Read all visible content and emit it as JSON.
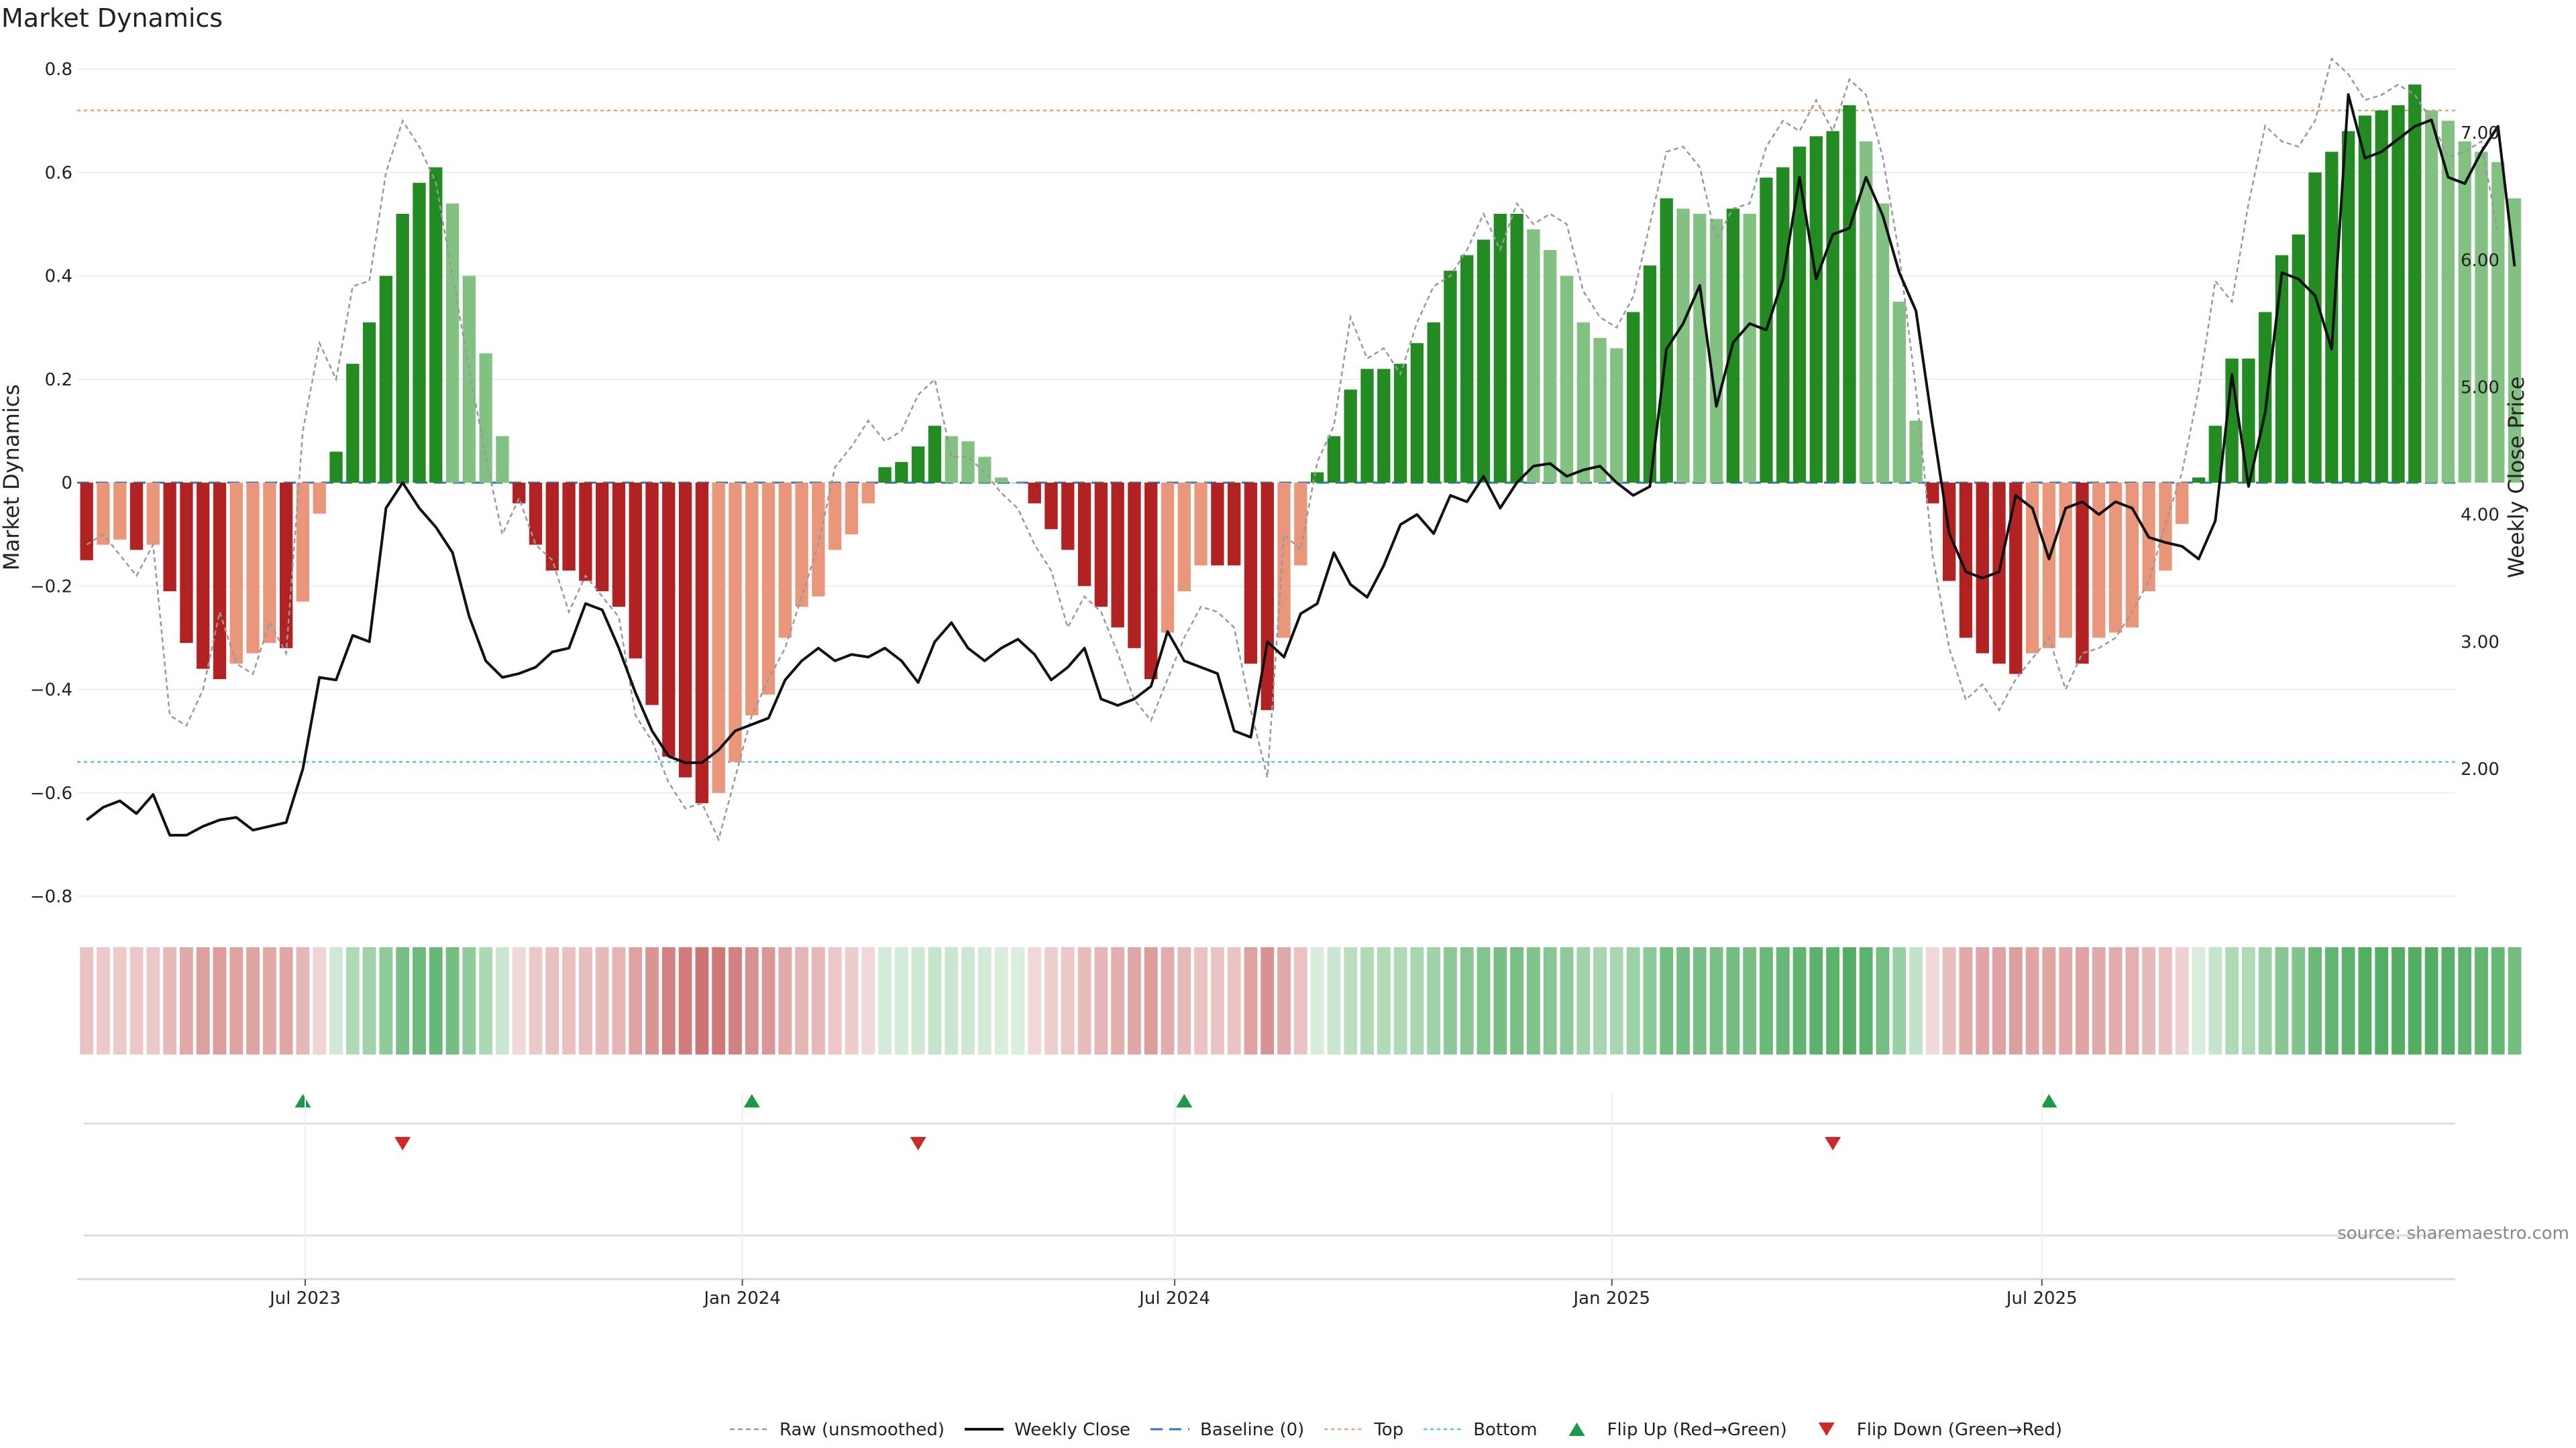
{
  "chart_data": {
    "type": "bar",
    "title": "Market Dynamics",
    "ylabel": "Market Dynamics",
    "y2label": "Weekly Close Price",
    "ylim": [
      -0.8,
      0.8
    ],
    "y2lim": [
      1.0,
      7.5
    ],
    "yticks": [
      "0.8",
      "0.6",
      "0.4",
      "0.2",
      "0",
      "−0.2",
      "−0.4",
      "−0.6",
      "−0.8"
    ],
    "y2ticks": [
      "7.00",
      "6.00",
      "5.00",
      "4.00",
      "3.00",
      "2.00"
    ],
    "xlim": [
      "2023-03-27",
      "2025-12-22"
    ],
    "x_ticks": [
      {
        "date": "2023-07-01",
        "label": "Jul 2023"
      },
      {
        "date": "2024-01-01",
        "label": "Jan 2024"
      },
      {
        "date": "2024-07-01",
        "label": "Jul 2024"
      },
      {
        "date": "2025-01-01",
        "label": "Jan 2025"
      },
      {
        "date": "2025-07-01",
        "label": "Jul 2025"
      }
    ],
    "start_date": "2023-03-31",
    "week_step_days": 7,
    "top_line": 0.72,
    "bottom_line": -0.54,
    "values": [
      -0.15,
      -0.12,
      -0.11,
      -0.13,
      -0.12,
      -0.21,
      -0.31,
      -0.36,
      -0.38,
      -0.35,
      -0.33,
      -0.31,
      -0.32,
      -0.23,
      -0.06,
      0.06,
      0.23,
      0.31,
      0.4,
      0.52,
      0.58,
      0.61,
      0.54,
      0.4,
      0.25,
      0.09,
      -0.04,
      -0.12,
      -0.17,
      -0.17,
      -0.19,
      -0.21,
      -0.24,
      -0.34,
      -0.43,
      -0.53,
      -0.57,
      -0.62,
      -0.6,
      -0.54,
      -0.45,
      -0.41,
      -0.3,
      -0.24,
      -0.22,
      -0.13,
      -0.1,
      -0.04,
      0.03,
      0.04,
      0.07,
      0.11,
      0.09,
      0.08,
      0.05,
      0.01,
      0.0,
      -0.04,
      -0.09,
      -0.13,
      -0.2,
      -0.24,
      -0.28,
      -0.32,
      -0.38,
      -0.29,
      -0.21,
      -0.16,
      -0.16,
      -0.16,
      -0.35,
      -0.44,
      -0.3,
      -0.16,
      0.02,
      0.09,
      0.18,
      0.22,
      0.22,
      0.23,
      0.27,
      0.31,
      0.41,
      0.44,
      0.47,
      0.52,
      0.52,
      0.49,
      0.45,
      0.4,
      0.31,
      0.28,
      0.26,
      0.33,
      0.42,
      0.55,
      0.53,
      0.52,
      0.51,
      0.53,
      0.52,
      0.59,
      0.61,
      0.65,
      0.67,
      0.68,
      0.73,
      0.66,
      0.54,
      0.35,
      0.12,
      -0.04,
      -0.19,
      -0.3,
      -0.33,
      -0.35,
      -0.37,
      -0.33,
      -0.32,
      -0.3,
      -0.35,
      -0.3,
      -0.29,
      -0.28,
      -0.21,
      -0.17,
      -0.08,
      0.01,
      0.11,
      0.24,
      0.24,
      0.33,
      0.44,
      0.48,
      0.6,
      0.64,
      0.68,
      0.71,
      0.72,
      0.73,
      0.77,
      0.72,
      0.7,
      0.66,
      0.64,
      0.62,
      0.55
    ],
    "raw": [
      -0.12,
      -0.1,
      -0.14,
      -0.18,
      -0.12,
      -0.45,
      -0.47,
      -0.4,
      -0.25,
      -0.35,
      -0.37,
      -0.27,
      -0.33,
      0.1,
      0.27,
      0.2,
      0.38,
      0.39,
      0.6,
      0.7,
      0.65,
      0.58,
      0.4,
      0.22,
      0.05,
      -0.1,
      -0.03,
      -0.12,
      -0.15,
      -0.25,
      -0.18,
      -0.22,
      -0.26,
      -0.45,
      -0.5,
      -0.58,
      -0.63,
      -0.62,
      -0.69,
      -0.57,
      -0.45,
      -0.38,
      -0.32,
      -0.22,
      -0.12,
      0.03,
      0.07,
      0.12,
      0.08,
      0.1,
      0.17,
      0.2,
      0.05,
      0.05,
      0.02,
      -0.02,
      -0.05,
      -0.12,
      -0.17,
      -0.28,
      -0.22,
      -0.25,
      -0.33,
      -0.42,
      -0.46,
      -0.38,
      -0.3,
      -0.24,
      -0.25,
      -0.28,
      -0.44,
      -0.57,
      -0.1,
      -0.13,
      0.04,
      0.11,
      0.32,
      0.24,
      0.26,
      0.21,
      0.31,
      0.38,
      0.4,
      0.45,
      0.52,
      0.45,
      0.54,
      0.5,
      0.52,
      0.5,
      0.37,
      0.32,
      0.3,
      0.36,
      0.5,
      0.64,
      0.65,
      0.61,
      0.47,
      0.53,
      0.54,
      0.65,
      0.7,
      0.68,
      0.74,
      0.68,
      0.78,
      0.75,
      0.63,
      0.44,
      0.18,
      -0.14,
      -0.32,
      -0.42,
      -0.39,
      -0.44,
      -0.38,
      -0.34,
      -0.3,
      -0.4,
      -0.33,
      -0.32,
      -0.3,
      -0.25,
      -0.19,
      -0.08,
      0.02,
      0.18,
      0.39,
      0.35,
      0.54,
      0.69,
      0.66,
      0.65,
      0.7,
      0.82,
      0.79,
      0.74,
      0.75,
      0.77,
      0.75,
      0.7,
      0.63,
      0.64,
      0.66,
      0.48
    ],
    "weekly_close": [
      1.6,
      1.7,
      1.75,
      1.65,
      1.8,
      1.48,
      1.48,
      1.55,
      1.6,
      1.62,
      1.52,
      1.55,
      1.58,
      2.0,
      2.72,
      2.7,
      3.05,
      3.0,
      4.05,
      4.25,
      4.05,
      3.9,
      3.7,
      3.2,
      2.85,
      2.72,
      2.75,
      2.8,
      2.92,
      2.95,
      3.3,
      3.25,
      2.95,
      2.6,
      2.3,
      2.1,
      2.05,
      2.05,
      2.15,
      2.3,
      2.35,
      2.4,
      2.7,
      2.85,
      2.95,
      2.85,
      2.9,
      2.88,
      2.95,
      2.85,
      2.68,
      3.0,
      3.15,
      2.95,
      2.85,
      2.95,
      3.02,
      2.9,
      2.7,
      2.8,
      2.95,
      2.55,
      2.5,
      2.55,
      2.65,
      3.08,
      2.85,
      2.8,
      2.75,
      2.3,
      2.25,
      3.0,
      2.88,
      3.22,
      3.3,
      3.7,
      3.45,
      3.35,
      3.6,
      3.92,
      4.0,
      3.85,
      4.15,
      4.1,
      4.3,
      4.05,
      4.25,
      4.38,
      4.4,
      4.3,
      4.35,
      4.38,
      4.25,
      4.15,
      4.22,
      5.3,
      5.5,
      5.8,
      4.85,
      5.35,
      5.5,
      5.45,
      5.85,
      6.65,
      5.85,
      6.2,
      6.25,
      6.65,
      6.35,
      5.9,
      5.6,
      4.7,
      3.85,
      3.55,
      3.5,
      3.55,
      4.15,
      4.05,
      3.65,
      4.05,
      4.1,
      4.0,
      4.1,
      4.05,
      3.82,
      3.78,
      3.75,
      3.65,
      3.95,
      5.1,
      4.22,
      4.8,
      5.9,
      5.85,
      5.72,
      5.3,
      7.3,
      6.8,
      6.85,
      6.95,
      7.05,
      7.1,
      6.65,
      6.6,
      6.85,
      7.05,
      5.95
    ],
    "flip_up": [
      "2023-06-30",
      "2024-01-05",
      "2024-07-05",
      "2025-07-04"
    ],
    "flip_down": [
      "2023-08-11",
      "2024-03-15",
      "2025-04-04"
    ],
    "legend_position": "bottom-center",
    "grid": true,
    "colors": {
      "strong_green": "#228b22",
      "light_green": "#82c182",
      "strong_red": "#b22222",
      "light_red": "#e9967a",
      "strip_green": "#4aaa5c",
      "strip_red": "#c65a5a",
      "raw_line": "#999999",
      "close_line": "#111111",
      "baseline": "#2f72b6",
      "top": "#f0a070",
      "bottom": "#4ec6d6",
      "flip_up": "#1a9a4a",
      "flip_down": "#d02828",
      "grid": "#eeeeee"
    }
  },
  "source": "source: sharemaestro.com",
  "legend": [
    {
      "label": "Raw (unsmoothed)",
      "key": "raw"
    },
    {
      "label": "Weekly Close",
      "key": "close"
    },
    {
      "label": "Baseline (0)",
      "key": "baseline"
    },
    {
      "label": "Top",
      "key": "top"
    },
    {
      "label": "Bottom",
      "key": "bottom"
    },
    {
      "label": "Flip Up (Red→Green)",
      "key": "flip_up"
    },
    {
      "label": "Flip Down (Green→Red)",
      "key": "flip_down"
    }
  ]
}
